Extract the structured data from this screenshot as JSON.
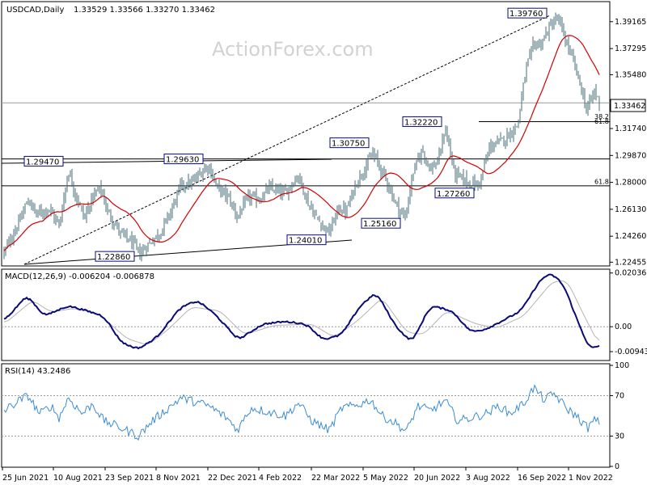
{
  "header": {
    "symbol": "USDCAD,Daily",
    "ohlc": "1.33529 1.33566 1.33270 1.33462"
  },
  "watermark": "ActionForex.com",
  "colors": {
    "candle": "#466e7a",
    "ma": "#d10000",
    "macd_main": "#0a0a78",
    "macd_signal": "#b4b4b4",
    "rsi": "#3c8cd2",
    "frame": "#000000",
    "price_box_bg": "#ffffff"
  },
  "chart_data": [
    {
      "type": "candlestick",
      "title": "USDCAD,Daily",
      "ylim": [
        1.2225,
        1.405
      ],
      "price_axis_ticks": [
        "1.39165",
        "1.37295",
        "1.35480",
        "1.31740",
        "1.29870",
        "1.28000",
        "1.26130",
        "1.24260",
        "1.22455"
      ],
      "current_price": "1.33462",
      "x_axis_ticks": [
        "25 Jun 2021",
        "10 Aug 2021",
        "23 Sep 2021",
        "8 Nov 2021",
        "22 Dec 2021",
        "4 Feb 2022",
        "22 Mar 2022",
        "5 May 2022",
        "20 Jun 2022",
        "3 Aug 2022",
        "16 Sep 2022",
        "1 Nov 2022"
      ],
      "price_labels": [
        {
          "text": "1.39760",
          "value": 1.3976
        },
        {
          "text": "1.32220",
          "value": 1.3222
        },
        {
          "text": "1.30750",
          "value": 1.3075
        },
        {
          "text": "1.29630",
          "value": 1.2963
        },
        {
          "text": "1.29470",
          "value": 1.2947
        },
        {
          "text": "1.27260",
          "value": 1.2726
        },
        {
          "text": "1.25160",
          "value": 1.2516
        },
        {
          "text": "1.24010",
          "value": 1.2401
        },
        {
          "text": "1.22860",
          "value": 1.2286
        }
      ],
      "fib_labels": [
        "38.2",
        "61.8",
        "61.8"
      ],
      "horizontal_levels": [
        1.3352,
        1.3222,
        1.2963,
        1.2776
      ],
      "close_path": [
        {
          "date": "2021-06-25",
          "close": 1.2315
        },
        {
          "date": "2021-07-08",
          "close": 1.252
        },
        {
          "date": "2021-07-16",
          "close": 1.268
        },
        {
          "date": "2021-07-23",
          "close": 1.258
        },
        {
          "date": "2021-08-03",
          "close": 1.262
        },
        {
          "date": "2021-08-12",
          "close": 1.25
        },
        {
          "date": "2021-08-20",
          "close": 1.288
        },
        {
          "date": "2021-08-27",
          "close": 1.27
        },
        {
          "date": "2021-09-03",
          "close": 1.255
        },
        {
          "date": "2021-09-10",
          "close": 1.27
        },
        {
          "date": "2021-09-17",
          "close": 1.276
        },
        {
          "date": "2021-09-23",
          "close": 1.26
        },
        {
          "date": "2021-10-04",
          "close": 1.245
        },
        {
          "date": "2021-10-15",
          "close": 1.238
        },
        {
          "date": "2021-10-21",
          "close": 1.23
        },
        {
          "date": "2021-11-01",
          "close": 1.24
        },
        {
          "date": "2021-11-08",
          "close": 1.245
        },
        {
          "date": "2021-11-17",
          "close": 1.26
        },
        {
          "date": "2021-11-26",
          "close": 1.278
        },
        {
          "date": "2021-12-06",
          "close": 1.28
        },
        {
          "date": "2021-12-15",
          "close": 1.288
        },
        {
          "date": "2021-12-20",
          "close": 1.292
        },
        {
          "date": "2021-12-27",
          "close": 1.277
        },
        {
          "date": "2022-01-06",
          "close": 1.27
        },
        {
          "date": "2022-01-14",
          "close": 1.256
        },
        {
          "date": "2022-01-24",
          "close": 1.27
        },
        {
          "date": "2022-02-02",
          "close": 1.268
        },
        {
          "date": "2022-02-11",
          "close": 1.276
        },
        {
          "date": "2022-02-24",
          "close": 1.272
        },
        {
          "date": "2022-03-08",
          "close": 1.285
        },
        {
          "date": "2022-03-17",
          "close": 1.265
        },
        {
          "date": "2022-03-24",
          "close": 1.255
        },
        {
          "date": "2022-04-04",
          "close": 1.245
        },
        {
          "date": "2022-04-12",
          "close": 1.262
        },
        {
          "date": "2022-04-19",
          "close": 1.26
        },
        {
          "date": "2022-04-27",
          "close": 1.279
        },
        {
          "date": "2022-05-05",
          "close": 1.29
        },
        {
          "date": "2022-05-12",
          "close": 1.3
        },
        {
          "date": "2022-05-23",
          "close": 1.283
        },
        {
          "date": "2022-06-01",
          "close": 1.265
        },
        {
          "date": "2022-06-09",
          "close": 1.255
        },
        {
          "date": "2022-06-16",
          "close": 1.287
        },
        {
          "date": "2022-06-24",
          "close": 1.303
        },
        {
          "date": "2022-07-01",
          "close": 1.289
        },
        {
          "date": "2022-07-08",
          "close": 1.295
        },
        {
          "date": "2022-07-14",
          "close": 1.318
        },
        {
          "date": "2022-07-22",
          "close": 1.286
        },
        {
          "date": "2022-08-03",
          "close": 1.28
        },
        {
          "date": "2022-08-12",
          "close": 1.278
        },
        {
          "date": "2022-08-22",
          "close": 1.305
        },
        {
          "date": "2022-08-30",
          "close": 1.308
        },
        {
          "date": "2022-09-06",
          "close": 1.312
        },
        {
          "date": "2022-09-15",
          "close": 1.32
        },
        {
          "date": "2022-09-22",
          "close": 1.358
        },
        {
          "date": "2022-09-29",
          "close": 1.376
        },
        {
          "date": "2022-10-05",
          "close": 1.376
        },
        {
          "date": "2022-10-13",
          "close": 1.388
        },
        {
          "date": "2022-10-20",
          "close": 1.394
        },
        {
          "date": "2022-10-26",
          "close": 1.38
        },
        {
          "date": "2022-11-02",
          "close": 1.365
        },
        {
          "date": "2022-11-08",
          "close": 1.349
        },
        {
          "date": "2022-11-14",
          "close": 1.33
        },
        {
          "date": "2022-11-21",
          "close": 1.344
        },
        {
          "date": "2022-11-25",
          "close": 1.3346
        }
      ]
    },
    {
      "type": "line",
      "title": "MACD(12,26,9) -0.006204 -0.006878",
      "ylim": [
        -0.0125,
        0.0215
      ],
      "axis_ticks": [
        "0.02036",
        "0.00",
        "-0.009438"
      ],
      "zero_line": 0,
      "series": [
        {
          "name": "MACD",
          "values": [
            {
              "date": "2021-06-25",
              "v": 0.002
            },
            {
              "date": "2021-07-15",
              "v": 0.012
            },
            {
              "date": "2021-07-30",
              "v": 0.004
            },
            {
              "date": "2021-08-20",
              "v": 0.008
            },
            {
              "date": "2021-09-05",
              "v": 0.006
            },
            {
              "date": "2021-09-20",
              "v": 0.004
            },
            {
              "date": "2021-10-05",
              "v": -0.006
            },
            {
              "date": "2021-10-20",
              "v": -0.0085
            },
            {
              "date": "2021-11-05",
              "v": -0.004
            },
            {
              "date": "2021-11-25",
              "v": 0.007
            },
            {
              "date": "2021-12-10",
              "v": 0.01
            },
            {
              "date": "2021-12-25",
              "v": 0.005
            },
            {
              "date": "2022-01-15",
              "v": -0.005
            },
            {
              "date": "2022-02-05",
              "v": 0.001
            },
            {
              "date": "2022-02-25",
              "v": 0.002
            },
            {
              "date": "2022-03-15",
              "v": 0.001
            },
            {
              "date": "2022-03-30",
              "v": -0.005
            },
            {
              "date": "2022-04-15",
              "v": -0.003
            },
            {
              "date": "2022-05-01",
              "v": 0.008
            },
            {
              "date": "2022-05-15",
              "v": 0.013
            },
            {
              "date": "2022-06-01",
              "v": 0.0
            },
            {
              "date": "2022-06-15",
              "v": -0.006
            },
            {
              "date": "2022-07-01",
              "v": 0.008
            },
            {
              "date": "2022-07-20",
              "v": 0.006
            },
            {
              "date": "2022-08-05",
              "v": -0.002
            },
            {
              "date": "2022-08-18",
              "v": -0.001
            },
            {
              "date": "2022-09-05",
              "v": 0.003
            },
            {
              "date": "2022-09-18",
              "v": 0.006
            },
            {
              "date": "2022-10-05",
              "v": 0.018
            },
            {
              "date": "2022-10-14",
              "v": 0.0203
            },
            {
              "date": "2022-10-25",
              "v": 0.016
            },
            {
              "date": "2022-11-08",
              "v": 0.0
            },
            {
              "date": "2022-11-18",
              "v": -0.0094
            },
            {
              "date": "2022-11-25",
              "v": -0.0062
            }
          ]
        },
        {
          "name": "Signal",
          "values": [
            {
              "date": "2021-06-25",
              "v": 0.001
            },
            {
              "date": "2021-07-20",
              "v": 0.01
            },
            {
              "date": "2021-08-05",
              "v": 0.0055
            },
            {
              "date": "2021-08-25",
              "v": 0.007
            },
            {
              "date": "2021-09-15",
              "v": 0.005
            },
            {
              "date": "2021-10-10",
              "v": -0.0045
            },
            {
              "date": "2021-10-28",
              "v": -0.007
            },
            {
              "date": "2021-11-15",
              "v": -0.001
            },
            {
              "date": "2021-12-05",
              "v": 0.0075
            },
            {
              "date": "2021-12-30",
              "v": 0.006
            },
            {
              "date": "2022-01-20",
              "v": -0.003
            },
            {
              "date": "2022-02-15",
              "v": 0.0005
            },
            {
              "date": "2022-03-20",
              "v": 0.001
            },
            {
              "date": "2022-04-08",
              "v": -0.004
            },
            {
              "date": "2022-04-28",
              "v": 0.002
            },
            {
              "date": "2022-05-20",
              "v": 0.011
            },
            {
              "date": "2022-06-10",
              "v": -0.002
            },
            {
              "date": "2022-06-25",
              "v": -0.003
            },
            {
              "date": "2022-07-15",
              "v": 0.006
            },
            {
              "date": "2022-08-10",
              "v": 0.001
            },
            {
              "date": "2022-08-28",
              "v": -0.0005
            },
            {
              "date": "2022-09-20",
              "v": 0.004
            },
            {
              "date": "2022-10-15",
              "v": 0.017
            },
            {
              "date": "2022-10-28",
              "v": 0.0175
            },
            {
              "date": "2022-11-12",
              "v": 0.004
            },
            {
              "date": "2022-11-25",
              "v": -0.0069
            }
          ]
        }
      ]
    },
    {
      "type": "line",
      "title": "RSI(14) 43.2486",
      "ylim": [
        0,
        100
      ],
      "axis_ticks": [
        "100",
        "70",
        "30",
        "0"
      ],
      "levels": [
        70,
        30
      ],
      "series": [
        {
          "name": "RSI",
          "values": [
            {
              "date": "2021-06-25",
              "v": 55
            },
            {
              "date": "2021-07-08",
              "v": 65
            },
            {
              "date": "2021-07-16",
              "v": 70
            },
            {
              "date": "2021-07-26",
              "v": 52
            },
            {
              "date": "2021-08-05",
              "v": 60
            },
            {
              "date": "2021-08-12",
              "v": 48
            },
            {
              "date": "2021-08-20",
              "v": 68
            },
            {
              "date": "2021-09-01",
              "v": 52
            },
            {
              "date": "2021-09-10",
              "v": 62
            },
            {
              "date": "2021-09-20",
              "v": 45
            },
            {
              "date": "2021-10-05",
              "v": 38
            },
            {
              "date": "2021-10-20",
              "v": 30
            },
            {
              "date": "2021-11-01",
              "v": 45
            },
            {
              "date": "2021-11-12",
              "v": 55
            },
            {
              "date": "2021-11-26",
              "v": 68
            },
            {
              "date": "2021-12-08",
              "v": 64
            },
            {
              "date": "2021-12-20",
              "v": 60
            },
            {
              "date": "2022-01-05",
              "v": 48
            },
            {
              "date": "2022-01-14",
              "v": 36
            },
            {
              "date": "2022-01-26",
              "v": 58
            },
            {
              "date": "2022-02-10",
              "v": 54
            },
            {
              "date": "2022-02-25",
              "v": 50
            },
            {
              "date": "2022-03-08",
              "v": 63
            },
            {
              "date": "2022-03-20",
              "v": 45
            },
            {
              "date": "2022-04-04",
              "v": 36
            },
            {
              "date": "2022-04-15",
              "v": 58
            },
            {
              "date": "2022-04-27",
              "v": 60
            },
            {
              "date": "2022-05-10",
              "v": 66
            },
            {
              "date": "2022-05-20",
              "v": 50
            },
            {
              "date": "2022-06-02",
              "v": 42
            },
            {
              "date": "2022-06-10",
              "v": 34
            },
            {
              "date": "2022-06-20",
              "v": 60
            },
            {
              "date": "2022-07-01",
              "v": 55
            },
            {
              "date": "2022-07-14",
              "v": 65
            },
            {
              "date": "2022-07-25",
              "v": 45
            },
            {
              "date": "2022-08-05",
              "v": 48
            },
            {
              "date": "2022-08-18",
              "v": 52
            },
            {
              "date": "2022-08-30",
              "v": 60
            },
            {
              "date": "2022-09-08",
              "v": 52
            },
            {
              "date": "2022-09-20",
              "v": 62
            },
            {
              "date": "2022-09-29",
              "v": 78
            },
            {
              "date": "2022-10-08",
              "v": 66
            },
            {
              "date": "2022-10-17",
              "v": 72
            },
            {
              "date": "2022-10-27",
              "v": 58
            },
            {
              "date": "2022-11-05",
              "v": 50
            },
            {
              "date": "2022-11-15",
              "v": 38
            },
            {
              "date": "2022-11-21",
              "v": 46
            },
            {
              "date": "2022-11-25",
              "v": 43
            }
          ]
        }
      ]
    }
  ]
}
